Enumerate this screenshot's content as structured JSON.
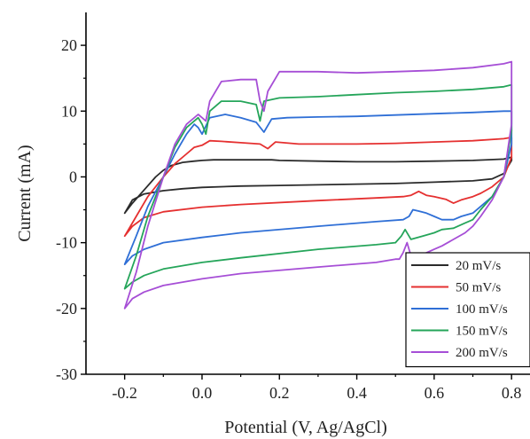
{
  "chart_data": {
    "type": "line",
    "title": "",
    "xlabel": "Potential (V, Ag/AgCl)",
    "ylabel": "Current (mA)",
    "xlim": [
      -0.3,
      0.85
    ],
    "ylim": [
      -30,
      25
    ],
    "xticks": [
      -0.2,
      0.0,
      0.2,
      0.4,
      0.6,
      0.8
    ],
    "xtick_labels": [
      "-0.2",
      "0.0",
      "0.2",
      "0.4",
      "0.6",
      "0.8"
    ],
    "yticks": [
      -30,
      -20,
      -10,
      0,
      10,
      20
    ],
    "ytick_labels": [
      "-30",
      "-20",
      "-10",
      "0",
      "10",
      "20"
    ],
    "grid": false,
    "legend_position": "bottom-right",
    "series": [
      {
        "name": "20 mV/s",
        "color": "#2b2b2b",
        "x": [
          -0.2,
          -0.18,
          -0.15,
          -0.12,
          -0.1,
          -0.08,
          -0.05,
          -0.02,
          0.0,
          0.03,
          0.1,
          0.18,
          0.2,
          0.3,
          0.4,
          0.5,
          0.6,
          0.7,
          0.78,
          0.8,
          0.8,
          0.78,
          0.75,
          0.7,
          0.65,
          0.6,
          0.55,
          0.5,
          0.4,
          0.3,
          0.2,
          0.1,
          0.0,
          -0.05,
          -0.1,
          -0.15,
          -0.18,
          -0.2
        ],
        "y": [
          -5.5,
          -4.0,
          -2.0,
          0.0,
          1.0,
          1.7,
          2.2,
          2.4,
          2.5,
          2.6,
          2.6,
          2.6,
          2.5,
          2.4,
          2.3,
          2.3,
          2.4,
          2.5,
          2.7,
          3.0,
          2.5,
          0.5,
          -0.3,
          -0.6,
          -0.7,
          -0.8,
          -0.9,
          -1.0,
          -1.1,
          -1.2,
          -1.3,
          -1.4,
          -1.6,
          -1.8,
          -2.1,
          -2.6,
          -3.5,
          -5.5
        ]
      },
      {
        "name": "50 mV/s",
        "color": "#e53030",
        "x": [
          -0.2,
          -0.17,
          -0.14,
          -0.1,
          -0.07,
          -0.04,
          -0.02,
          0.0,
          0.02,
          0.05,
          0.1,
          0.15,
          0.17,
          0.19,
          0.25,
          0.4,
          0.5,
          0.6,
          0.7,
          0.78,
          0.8,
          0.8,
          0.78,
          0.75,
          0.72,
          0.7,
          0.67,
          0.65,
          0.63,
          0.6,
          0.58,
          0.56,
          0.54,
          0.52,
          0.45,
          0.3,
          0.1,
          0.0,
          -0.1,
          -0.15,
          -0.18,
          -0.2
        ],
        "y": [
          -9.0,
          -6.0,
          -3.0,
          0.0,
          2.0,
          3.5,
          4.5,
          4.8,
          5.5,
          5.4,
          5.2,
          5.0,
          4.3,
          5.3,
          5.0,
          5.0,
          5.1,
          5.3,
          5.5,
          5.8,
          6.0,
          3.0,
          0.0,
          -1.5,
          -2.5,
          -3.0,
          -3.5,
          -4.0,
          -3.4,
          -3.0,
          -2.8,
          -2.2,
          -2.8,
          -3.0,
          -3.2,
          -3.6,
          -4.2,
          -4.6,
          -5.3,
          -6.2,
          -7.5,
          -9.0
        ]
      },
      {
        "name": "100 mV/s",
        "color": "#2f6fd6",
        "x": [
          -0.2,
          -0.17,
          -0.14,
          -0.1,
          -0.07,
          -0.04,
          -0.02,
          -0.01,
          0.0,
          0.02,
          0.06,
          0.1,
          0.14,
          0.16,
          0.18,
          0.22,
          0.3,
          0.4,
          0.5,
          0.6,
          0.7,
          0.78,
          0.8,
          0.8,
          0.78,
          0.75,
          0.72,
          0.7,
          0.67,
          0.65,
          0.62,
          0.6,
          0.58,
          0.56,
          0.545,
          0.535,
          0.52,
          0.45,
          0.3,
          0.1,
          0.0,
          -0.1,
          -0.15,
          -0.18,
          -0.2
        ],
        "y": [
          -13.3,
          -9.0,
          -4.5,
          0.0,
          3.5,
          6.5,
          8.0,
          7.5,
          6.5,
          9.0,
          9.5,
          9.0,
          8.3,
          6.8,
          8.8,
          9.0,
          9.1,
          9.2,
          9.4,
          9.6,
          9.8,
          10.0,
          10.0,
          5.0,
          0.0,
          -3.0,
          -4.5,
          -5.5,
          -6.0,
          -6.5,
          -6.5,
          -6.0,
          -5.5,
          -5.2,
          -5.0,
          -6.0,
          -6.5,
          -6.8,
          -7.5,
          -8.5,
          -9.2,
          -10.0,
          -11.0,
          -12.0,
          -13.3
        ]
      },
      {
        "name": "150 mV/s",
        "color": "#25a55a",
        "x": [
          -0.2,
          -0.17,
          -0.14,
          -0.1,
          -0.07,
          -0.04,
          -0.01,
          0.0,
          0.01,
          0.02,
          0.05,
          0.1,
          0.14,
          0.15,
          0.16,
          0.2,
          0.3,
          0.4,
          0.5,
          0.6,
          0.7,
          0.78,
          0.8,
          0.8,
          0.78,
          0.75,
          0.72,
          0.7,
          0.68,
          0.65,
          0.62,
          0.6,
          0.57,
          0.54,
          0.525,
          0.515,
          0.5,
          0.45,
          0.3,
          0.1,
          0.0,
          -0.1,
          -0.15,
          -0.18,
          -0.2
        ],
        "y": [
          -17.0,
          -12.0,
          -6.0,
          0.0,
          4.5,
          7.5,
          9.0,
          8.0,
          6.5,
          10.0,
          11.5,
          11.5,
          11.0,
          8.5,
          11.5,
          12.0,
          12.2,
          12.5,
          12.8,
          13.0,
          13.3,
          13.7,
          14.0,
          7.0,
          0.0,
          -3.0,
          -5.0,
          -6.5,
          -7.0,
          -7.8,
          -8.0,
          -8.5,
          -9.0,
          -9.5,
          -8.0,
          -9.0,
          -10.0,
          -10.3,
          -11.0,
          -12.3,
          -13.0,
          -14.0,
          -15.0,
          -16.0,
          -17.0
        ]
      },
      {
        "name": "200 mV/s",
        "color": "#a64ed6",
        "x": [
          -0.2,
          -0.17,
          -0.14,
          -0.1,
          -0.07,
          -0.04,
          -0.01,
          0.0,
          0.01,
          0.02,
          0.05,
          0.1,
          0.14,
          0.15,
          0.16,
          0.17,
          0.2,
          0.3,
          0.4,
          0.5,
          0.6,
          0.7,
          0.78,
          0.8,
          0.8,
          0.78,
          0.75,
          0.72,
          0.7,
          0.68,
          0.65,
          0.62,
          0.6,
          0.57,
          0.54,
          0.53,
          0.52,
          0.51,
          0.5,
          0.45,
          0.3,
          0.1,
          0.0,
          -0.1,
          -0.15,
          -0.18,
          -0.2
        ],
        "y": [
          -20.0,
          -14.5,
          -7.5,
          0.0,
          5.0,
          8.0,
          9.5,
          9.0,
          8.5,
          11.5,
          14.5,
          14.8,
          14.8,
          11.5,
          10.0,
          13.0,
          16.0,
          16.0,
          15.8,
          16.0,
          16.2,
          16.6,
          17.2,
          17.5,
          8.0,
          0.0,
          -3.5,
          -6.0,
          -7.5,
          -8.5,
          -9.5,
          -10.5,
          -11.0,
          -11.8,
          -12.0,
          -10.0,
          -11.5,
          -12.5,
          -12.5,
          -13.0,
          -13.7,
          -14.7,
          -15.5,
          -16.5,
          -17.5,
          -18.5,
          -20.0
        ]
      }
    ]
  }
}
